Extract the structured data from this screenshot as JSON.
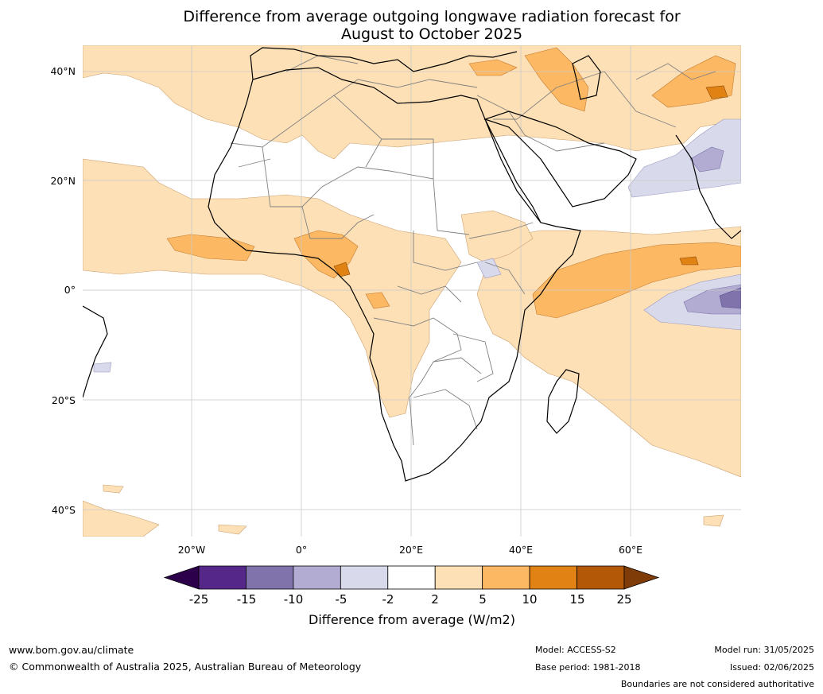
{
  "title_line1": "Difference from average outgoing longwave radiation forecast for",
  "title_line2": "August to October 2025",
  "lat_labels": [
    "40°N",
    "20°N",
    "0°",
    "20°S",
    "40°S"
  ],
  "lon_labels": [
    "20°W",
    "0°",
    "20°E",
    "40°E",
    "60°E"
  ],
  "colorbar": {
    "ticks": [
      "-25",
      "-15",
      "-10",
      "-5",
      "-2",
      "2",
      "5",
      "10",
      "15",
      "25"
    ],
    "colors": [
      "#2d004b",
      "#542788",
      "#8073ac",
      "#b2abd2",
      "#d8daeb",
      "#ffffff",
      "#fee0b6",
      "#fdb863",
      "#e08214",
      "#b35806",
      "#7f3b08"
    ],
    "label": "Difference from average (W/m2)"
  },
  "footer": {
    "url": "www.bom.gov.au/climate",
    "copyright": "© Commonwealth of Australia 2025, Australian Bureau of Meteorology",
    "model": "Model: ACCESS-S2",
    "base_period": "Base period: 1981-2018",
    "model_run": "Model run: 31/05/2025",
    "issued": "Issued: 02/06/2025",
    "disclaimer": "Boundaries are not considered authoritative"
  }
}
